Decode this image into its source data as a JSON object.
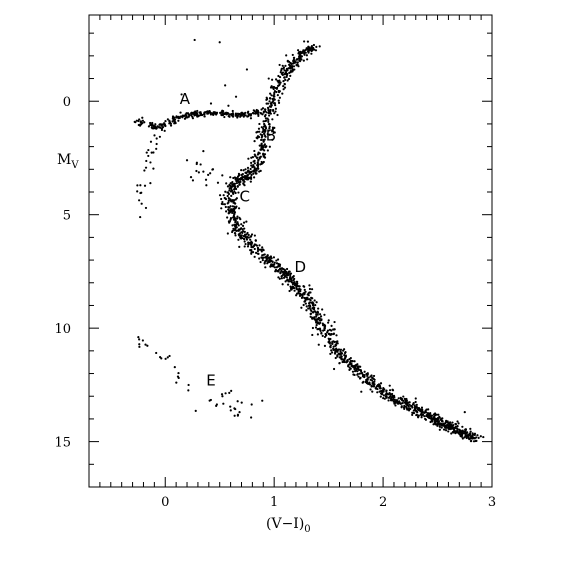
{
  "chart_data": {
    "type": "scatter",
    "title": "",
    "xlabel": "(V−I)",
    "xlabel_sub": "0",
    "ylabel": "M",
    "ylabel_sub": "V",
    "xlim": [
      -0.7,
      3.0
    ],
    "ylim": [
      17.0,
      -3.8
    ],
    "y_inverted": true,
    "grid": false,
    "x_ticks_major": [
      0,
      1,
      2,
      3
    ],
    "x_tick_labels": [
      "0",
      "1",
      "2",
      "3"
    ],
    "x_ticks_minor_step": 0.1,
    "y_ticks_major": [
      0,
      5,
      10,
      15
    ],
    "y_tick_labels": [
      "0",
      "5",
      "10",
      "15"
    ],
    "y_ticks_minor_step": 1,
    "annotations": [
      {
        "text": "A",
        "x": 0.18,
        "y": -0.1
      },
      {
        "text": "B",
        "x": 0.97,
        "y": 1.5
      },
      {
        "text": "C",
        "x": 0.73,
        "y": 4.2
      },
      {
        "text": "D",
        "x": 1.24,
        "y": 7.3
      },
      {
        "text": "E",
        "x": 0.42,
        "y": 12.3
      }
    ],
    "series": [
      {
        "type": "curve",
        "points": [
          [
            1.36,
            -2.4
          ],
          [
            1.28,
            -2.2
          ],
          [
            1.2,
            -1.8
          ],
          [
            1.12,
            -1.3
          ],
          [
            1.05,
            -0.8
          ],
          [
            0.99,
            -0.2
          ],
          [
            0.95,
            0.5
          ],
          [
            0.92,
            1.1
          ],
          [
            0.9,
            1.7
          ],
          [
            0.88,
            2.2
          ],
          [
            0.84,
            2.7
          ],
          [
            0.79,
            3.1
          ],
          [
            0.72,
            3.4
          ],
          [
            0.66,
            3.5
          ],
          [
            0.62,
            3.7
          ],
          [
            0.6,
            4.0
          ],
          [
            0.59,
            4.4
          ],
          [
            0.6,
            4.8
          ],
          [
            0.63,
            5.2
          ],
          [
            0.68,
            5.7
          ],
          [
            0.75,
            6.1
          ],
          [
            0.85,
            6.6
          ],
          [
            0.97,
            7.1
          ],
          [
            1.1,
            7.6
          ],
          [
            1.22,
            8.2
          ],
          [
            1.33,
            8.9
          ],
          [
            1.42,
            9.6
          ],
          [
            1.5,
            10.4
          ],
          [
            1.59,
            11.1
          ],
          [
            1.7,
            11.6
          ],
          [
            1.82,
            12.1
          ],
          [
            1.95,
            12.6
          ],
          [
            2.1,
            13.1
          ],
          [
            2.3,
            13.6
          ],
          [
            2.5,
            14.1
          ],
          [
            2.72,
            14.6
          ],
          [
            2.85,
            14.9
          ]
        ],
        "count": 1700,
        "spread_x": 0.035,
        "spread_y": 0.1
      },
      {
        "type": "curve",
        "points": [
          [
            -0.25,
            0.8
          ],
          [
            -0.18,
            1.0
          ],
          [
            -0.1,
            1.15
          ],
          [
            0.0,
            1.05
          ],
          [
            0.05,
            0.9
          ],
          [
            0.12,
            0.75
          ],
          [
            0.2,
            0.62
          ],
          [
            0.3,
            0.56
          ],
          [
            0.4,
            0.55
          ],
          [
            0.5,
            0.55
          ],
          [
            0.6,
            0.56
          ],
          [
            0.7,
            0.6
          ],
          [
            0.8,
            0.58
          ],
          [
            0.88,
            0.45
          ]
        ],
        "count": 260,
        "spread_x": 0.03,
        "spread_y": 0.07
      },
      {
        "type": "curve",
        "points": [
          [
            -0.05,
            1.3
          ],
          [
            -0.12,
            2.0
          ],
          [
            -0.18,
            3.0
          ],
          [
            -0.2,
            4.0
          ],
          [
            -0.22,
            4.8
          ],
          [
            -0.22,
            5.4
          ]
        ],
        "count": 28,
        "spread_x": 0.04,
        "spread_y": 0.25
      },
      {
        "type": "curve",
        "points": [
          [
            0.2,
            2.8
          ],
          [
            0.3,
            3.0
          ],
          [
            0.4,
            3.2
          ],
          [
            0.5,
            3.4
          ],
          [
            0.55,
            3.6
          ]
        ],
        "count": 18,
        "spread_x": 0.05,
        "spread_y": 0.25
      },
      {
        "type": "curve",
        "points": [
          [
            -0.22,
            10.4
          ],
          [
            -0.1,
            11.1
          ],
          [
            0.05,
            11.6
          ],
          [
            0.18,
            12.2
          ],
          [
            0.28,
            12.6
          ]
        ],
        "count": 20,
        "spread_x": 0.04,
        "spread_y": 0.2
      },
      {
        "type": "curve",
        "points": [
          [
            0.38,
            13.3
          ],
          [
            0.5,
            13.2
          ],
          [
            0.6,
            13.4
          ],
          [
            0.7,
            13.5
          ],
          [
            0.8,
            13.5
          ],
          [
            0.88,
            13.4
          ]
        ],
        "count": 24,
        "spread_x": 0.05,
        "spread_y": 0.3
      },
      {
        "type": "points",
        "points": [
          [
            0.27,
            -2.7
          ],
          [
            0.5,
            -2.6
          ],
          [
            0.75,
            -1.4
          ],
          [
            0.55,
            -0.7
          ],
          [
            0.42,
            0.1
          ],
          [
            0.35,
            2.2
          ],
          [
            0.2,
            2.6
          ],
          [
            0.95,
            -1.0
          ],
          [
            1.05,
            -1.6
          ],
          [
            0.15,
            -0.3
          ],
          [
            0.65,
            -0.2
          ],
          [
            0.58,
            0.2
          ],
          [
            2.75,
            13.7
          ],
          [
            2.92,
            14.8
          ],
          [
            2.3,
            13.1
          ],
          [
            2.6,
            14.3
          ],
          [
            1.55,
            11.8
          ],
          [
            1.8,
            12.8
          ],
          [
            1.35,
            10.3
          ],
          [
            1.25,
            9.1
          ]
        ]
      }
    ]
  }
}
